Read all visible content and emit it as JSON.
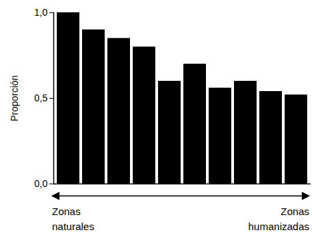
{
  "chart_data": {
    "type": "bar",
    "y_label": "Proporción",
    "categories": [
      null,
      null,
      null,
      null,
      null,
      null,
      null,
      null,
      null,
      null
    ],
    "values": [
      1.0,
      0.9,
      0.85,
      0.8,
      0.6,
      0.7,
      0.56,
      0.6,
      0.54,
      0.52
    ],
    "color": "#000000",
    "ylim": [
      0,
      1
    ],
    "yticks": [
      {
        "value": 0,
        "label": "0,0"
      },
      {
        "value": 0.5,
        "label": "0,5"
      },
      {
        "value": 1,
        "label": "1,0"
      }
    ],
    "grid": false,
    "tick_labels": "y",
    "annotations": [
      {
        "text": "Zonas naturales",
        "position": "left"
      },
      {
        "text": "Zonas humanizadas",
        "position": "right"
      }
    ]
  }
}
